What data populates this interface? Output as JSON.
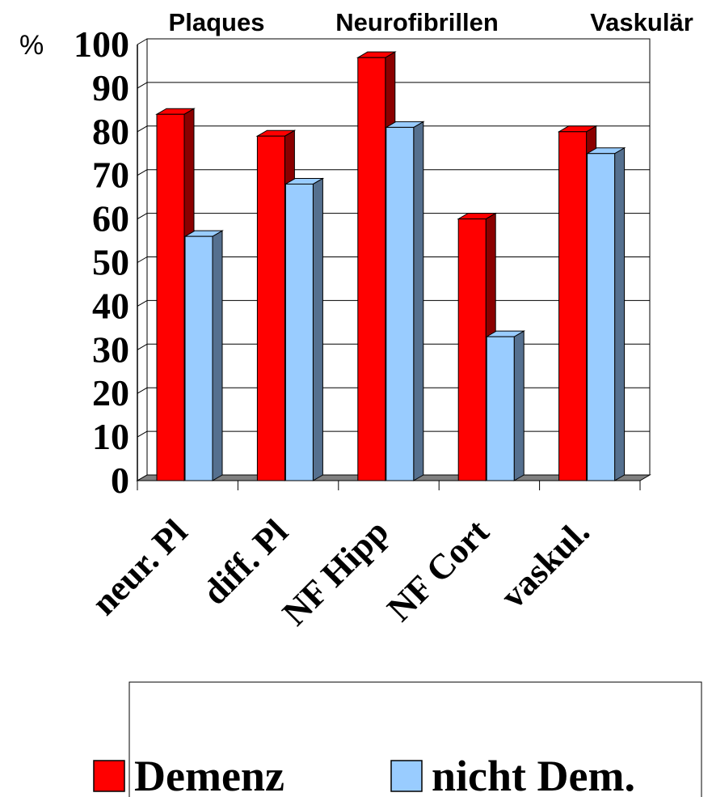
{
  "chart_data": {
    "type": "bar",
    "unit_label": "%",
    "header_labels": [
      "Plaques",
      "Neurofibrillen",
      "Vaskulär"
    ],
    "categories": [
      "neur. Pl",
      "diff. Pl",
      "NF Hipp",
      "NF Cort",
      "vaskul."
    ],
    "series": [
      {
        "name": "Demenz",
        "values": [
          84,
          79,
          97,
          60,
          80
        ]
      },
      {
        "name": "nicht Dem.",
        "values": [
          56,
          68,
          81,
          33,
          75
        ]
      }
    ],
    "ylim": [
      0,
      100
    ],
    "yticks": [
      "0",
      "10",
      "20",
      "30",
      "40",
      "50",
      "60",
      "70",
      "80",
      "90",
      "100"
    ],
    "grid": true,
    "legend_position": "bottom",
    "colors": {
      "Demenz": "#ff0000",
      "Demenz_side": "#8b0000",
      "nicht Dem.": "#99ccff",
      "nicht Dem._side": "#55708f",
      "floor": "#808080"
    }
  }
}
